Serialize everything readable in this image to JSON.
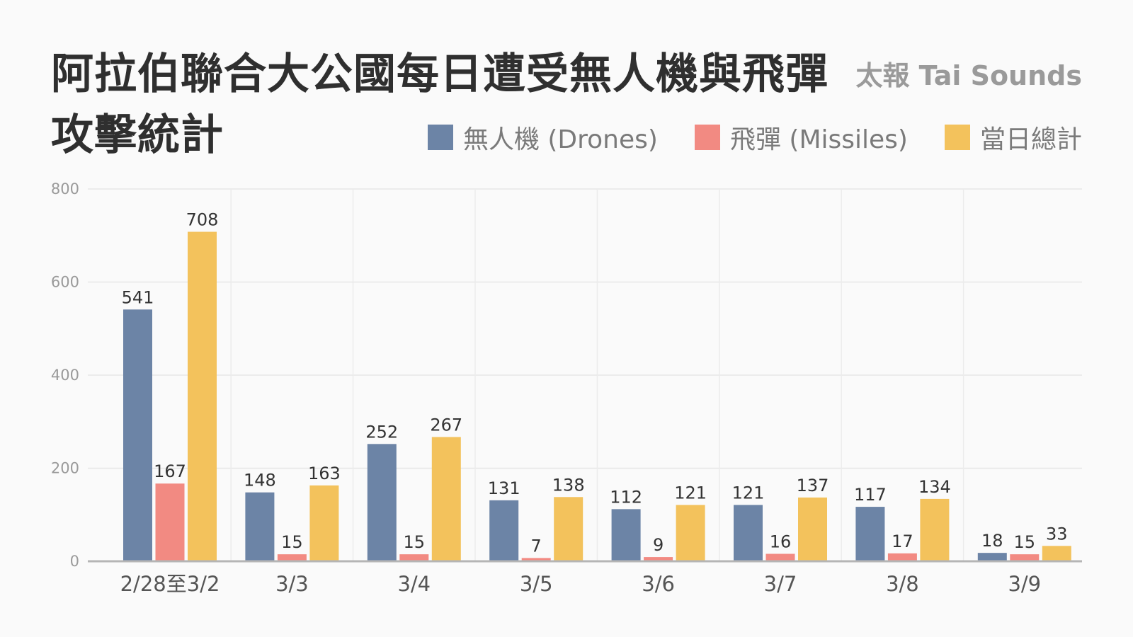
{
  "chart_data": {
    "type": "bar",
    "title": "阿拉伯聯合大公國每日遭受無人機與飛彈攻擊統計",
    "source": "太報 Tai Sounds",
    "categories": [
      "2/28至3/2",
      "3/3",
      "3/4",
      "3/5",
      "3/6",
      "3/7",
      "3/8",
      "3/9"
    ],
    "series": [
      {
        "name": "無人機 (Drones)",
        "color": "#6c84a6",
        "values": [
          541,
          148,
          252,
          131,
          112,
          121,
          117,
          18
        ]
      },
      {
        "name": "飛彈 (Missiles)",
        "color": "#f28a82",
        "values": [
          167,
          15,
          15,
          7,
          9,
          16,
          17,
          15
        ]
      },
      {
        "name": "當日總計",
        "color": "#f3c25c",
        "values": [
          708,
          163,
          267,
          138,
          121,
          137,
          134,
          33
        ]
      }
    ],
    "yticks": [
      0,
      200,
      400,
      600,
      800
    ],
    "ylim": [
      0,
      800
    ],
    "xlabel": "",
    "ylabel": "",
    "grid": true,
    "legend_position": "top-right"
  }
}
